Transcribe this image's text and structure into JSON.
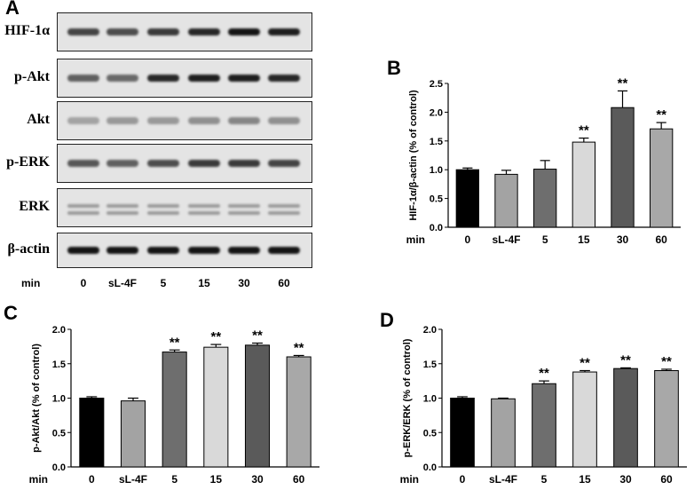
{
  "panel_letters": {
    "a": "A",
    "b": "B",
    "c": "C",
    "d": "D"
  },
  "blot": {
    "rows": [
      {
        "label": "HIF-1α",
        "band_intensity": [
          0.75,
          0.7,
          0.8,
          0.9,
          1.0,
          0.95
        ]
      },
      {
        "label": "p-Akt",
        "band_intensity": [
          0.6,
          0.55,
          0.9,
          0.95,
          0.95,
          0.9
        ]
      },
      {
        "label": "Akt",
        "band_intensity": [
          0.25,
          0.3,
          0.3,
          0.35,
          0.4,
          0.35
        ]
      },
      {
        "label": "p-ERK",
        "band_intensity": [
          0.65,
          0.6,
          0.7,
          0.8,
          0.8,
          0.75
        ]
      },
      {
        "label": "ERK",
        "band_intensity": [
          0.3,
          0.3,
          0.3,
          0.3,
          0.3,
          0.3
        ]
      },
      {
        "label": "β-actin",
        "band_intensity": [
          1.0,
          1.0,
          1.0,
          1.0,
          1.0,
          1.0
        ]
      }
    ],
    "min_label": "min",
    "lanes": [
      "0",
      "sL-4F",
      "5",
      "15",
      "30",
      "60"
    ]
  },
  "colors": [
    "#000000",
    "#a3a3a3",
    "#6e6e6e",
    "#d9d9d9",
    "#5a5a5a",
    "#a8a8a8"
  ],
  "chart_data": [
    {
      "panel": "B",
      "type": "bar",
      "categories": [
        "0",
        "sL-4F",
        "5",
        "15",
        "30",
        "60"
      ],
      "x_prefix": "min",
      "values": [
        1.0,
        0.92,
        1.01,
        1.48,
        2.08,
        1.71
      ],
      "errors": [
        0.03,
        0.07,
        0.15,
        0.07,
        0.29,
        0.11
      ],
      "significance": [
        "",
        "",
        "",
        "**",
        "**",
        "**"
      ],
      "ylabel": "HIF-1α/β-actin (% of control)",
      "ylim": [
        0,
        2.5
      ],
      "yticks": [
        "0.0",
        "0.5",
        "1.0",
        "1.5",
        "2.0",
        "2.5"
      ]
    },
    {
      "panel": "C",
      "type": "bar",
      "categories": [
        "0",
        "sL-4F",
        "5",
        "15",
        "30",
        "60"
      ],
      "x_prefix": "min",
      "values": [
        1.0,
        0.96,
        1.67,
        1.74,
        1.77,
        1.6
      ],
      "errors": [
        0.02,
        0.04,
        0.03,
        0.04,
        0.03,
        0.02
      ],
      "significance": [
        "",
        "",
        "**",
        "**",
        "**",
        "**"
      ],
      "ylabel": "p-Akt/Akt (% of control)",
      "ylim": [
        0,
        2.0
      ],
      "yticks": [
        "0.0",
        "0.5",
        "1.0",
        "1.5",
        "2.0"
      ]
    },
    {
      "panel": "D",
      "type": "bar",
      "categories": [
        "0",
        "sL-4F",
        "5",
        "15",
        "30",
        "60"
      ],
      "x_prefix": "min",
      "values": [
        1.0,
        0.99,
        1.21,
        1.38,
        1.43,
        1.4
      ],
      "errors": [
        0.02,
        0.01,
        0.04,
        0.02,
        0.01,
        0.02
      ],
      "significance": [
        "",
        "",
        "**",
        "**",
        "**",
        "**"
      ],
      "ylabel": "p-ERK/ERK (% of control)",
      "ylim": [
        0,
        2.0
      ],
      "yticks": [
        "0.0",
        "0.5",
        "1.0",
        "1.5",
        "2.0"
      ]
    }
  ]
}
